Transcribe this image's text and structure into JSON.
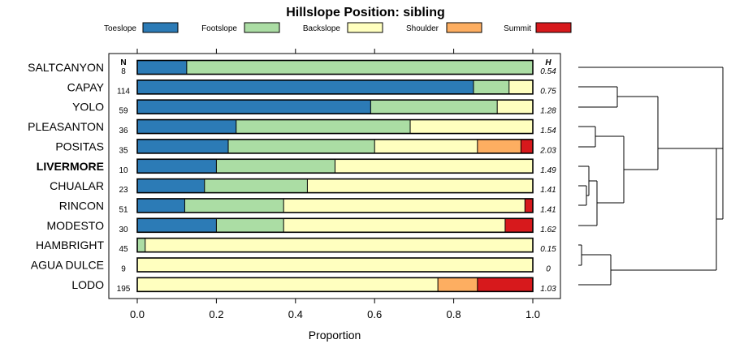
{
  "chart_data": {
    "type": "bar",
    "orientation": "horizontal",
    "stacked": true,
    "title": "Hillslope Position: sibling",
    "xlabel": "Proportion",
    "ylabel": "",
    "xlim": [
      0,
      1
    ],
    "xticks": [
      0.0,
      0.2,
      0.4,
      0.6,
      0.8,
      1.0
    ],
    "xtick_labels": [
      "0.0",
      "0.2",
      "0.4",
      "0.6",
      "0.8",
      "1.0"
    ],
    "legend_position": "top",
    "n_header": "N",
    "h_header": "H",
    "highlight": "LIVERMORE",
    "series": [
      {
        "name": "Toeslope",
        "color": "#2c7bb6"
      },
      {
        "name": "Footslope",
        "color": "#abdda4"
      },
      {
        "name": "Backslope",
        "color": "#ffffbf"
      },
      {
        "name": "Shoulder",
        "color": "#fdae61"
      },
      {
        "name": "Summit",
        "color": "#d7191c"
      }
    ],
    "categories": [
      {
        "label": "SALTCANYON",
        "n": "8",
        "h": "0.54",
        "values": [
          0.125,
          0.875,
          0,
          0,
          0
        ]
      },
      {
        "label": "CAPAY",
        "n": "114",
        "h": "0.75",
        "values": [
          0.85,
          0.09,
          0.06,
          0,
          0
        ]
      },
      {
        "label": "YOLO",
        "n": "59",
        "h": "1.28",
        "values": [
          0.59,
          0.32,
          0.09,
          0,
          0
        ]
      },
      {
        "label": "PLEASANTON",
        "n": "36",
        "h": "1.54",
        "values": [
          0.25,
          0.44,
          0.31,
          0,
          0
        ]
      },
      {
        "label": "POSITAS",
        "n": "35",
        "h": "2.03",
        "values": [
          0.23,
          0.37,
          0.26,
          0.11,
          0.03
        ]
      },
      {
        "label": "LIVERMORE",
        "n": "10",
        "h": "1.49",
        "values": [
          0.2,
          0.3,
          0.5,
          0,
          0
        ]
      },
      {
        "label": "CHUALAR",
        "n": "23",
        "h": "1.41",
        "values": [
          0.17,
          0.26,
          0.57,
          0,
          0
        ]
      },
      {
        "label": "RINCON",
        "n": "51",
        "h": "1.41",
        "values": [
          0.12,
          0.25,
          0.61,
          0,
          0.02
        ]
      },
      {
        "label": "MODESTO",
        "n": "30",
        "h": "1.62",
        "values": [
          0.2,
          0.17,
          0.56,
          0,
          0.07
        ]
      },
      {
        "label": "HAMBRIGHT",
        "n": "45",
        "h": "0.15",
        "values": [
          0,
          0.02,
          0.98,
          0,
          0
        ]
      },
      {
        "label": "AGUA DULCE",
        "n": "9",
        "h": "0",
        "values": [
          0,
          0,
          1,
          0,
          0
        ]
      },
      {
        "label": "LODO",
        "n": "195",
        "h": "1.03",
        "values": [
          0,
          0,
          0.76,
          0.1,
          0.14
        ]
      }
    ]
  }
}
